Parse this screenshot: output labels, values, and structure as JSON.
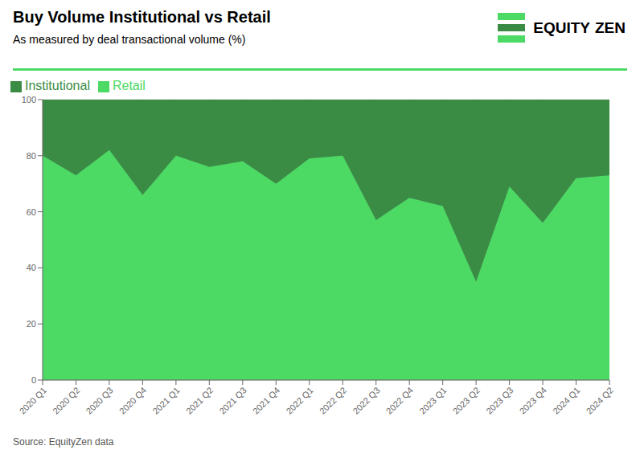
{
  "chart_data": {
    "type": "area",
    "title": "Buy Volume Institutional vs Retail",
    "subtitle": "As measured by deal transactional volume (%)",
    "source": "Source: EquityZen data",
    "annotations": [
      "EQUITY",
      "ZEN"
    ],
    "categories": [
      "2020 Q1",
      "2020 Q2",
      "2020 Q3",
      "2020 Q4",
      "2021 Q1",
      "2021 Q2",
      "2021 Q3",
      "2021 Q4",
      "2022 Q1",
      "2022 Q2",
      "2022 Q3",
      "2022 Q4",
      "2023 Q1",
      "2023 Q2",
      "2023 Q3",
      "2023 Q4",
      "2024 Q1",
      "2024 Q2"
    ],
    "series": [
      {
        "name": "Retail",
        "color": "#4cd964",
        "values": [
          80,
          73,
          82,
          66,
          80,
          76,
          78,
          70,
          79,
          80,
          57,
          65,
          62,
          35,
          69,
          56,
          72,
          73
        ]
      },
      {
        "name": "Institutional",
        "color": "#3a8c45",
        "values": [
          20,
          27,
          18,
          34,
          20,
          24,
          22,
          30,
          21,
          20,
          43,
          35,
          38,
          65,
          31,
          44,
          28,
          27
        ]
      }
    ],
    "stacked": true,
    "ylim": [
      0,
      100
    ],
    "yticks": [
      0,
      20,
      40,
      60,
      80,
      100
    ],
    "grid": true,
    "legend": "upper left"
  }
}
